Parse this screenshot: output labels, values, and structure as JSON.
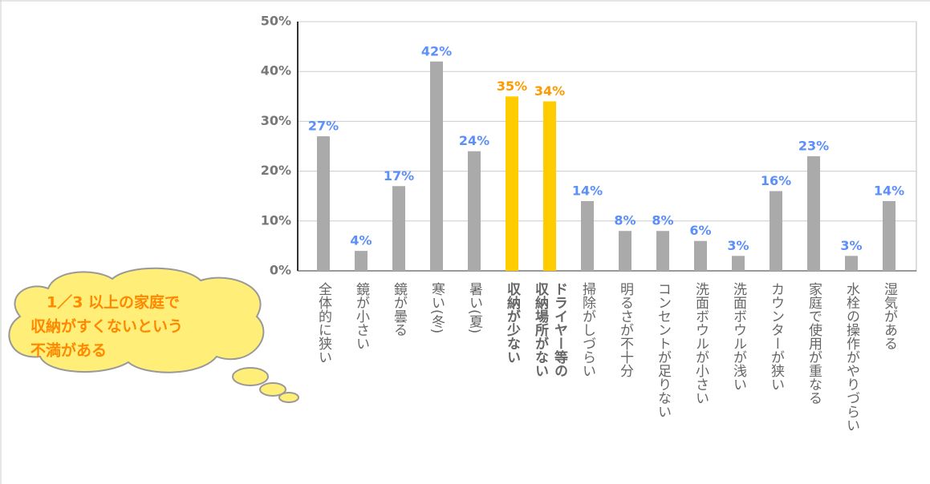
{
  "chart_data": {
    "type": "bar",
    "categories": [
      "全体的に狭い",
      "鏡が小さい",
      "鏡が曇る",
      "寒い(冬)",
      "暑い(夏)",
      "収納が少ない",
      "ドライヤー等の\n収納場所がない",
      "掃除がしづらい",
      "明るさが不十分",
      "コンセントが足りない",
      "洗面ボウルが小さい",
      "洗面ボウルが浅い",
      "カウンターが狭い",
      "家庭で使用が重なる",
      "水栓の操作がやりづらい",
      "湿気がある"
    ],
    "values": [
      27,
      4,
      17,
      42,
      24,
      35,
      34,
      14,
      8,
      8,
      6,
      3,
      16,
      23,
      3,
      14
    ],
    "value_labels": [
      "27%",
      "4%",
      "17%",
      "42%",
      "24%",
      "35%",
      "34%",
      "14%",
      "8%",
      "8%",
      "6%",
      "3%",
      "16%",
      "23%",
      "3%",
      "14%"
    ],
    "colors": [
      "#aaaaaa",
      "#aaaaaa",
      "#aaaaaa",
      "#aaaaaa",
      "#aaaaaa",
      "#ffcc00",
      "#ffcc00",
      "#aaaaaa",
      "#aaaaaa",
      "#aaaaaa",
      "#aaaaaa",
      "#aaaaaa",
      "#aaaaaa",
      "#aaaaaa",
      "#aaaaaa",
      "#aaaaaa"
    ],
    "label_colors": [
      "#5b8ff9",
      "#5b8ff9",
      "#5b8ff9",
      "#5b8ff9",
      "#5b8ff9",
      "#ff9900",
      "#ff9900",
      "#5b8ff9",
      "#5b8ff9",
      "#5b8ff9",
      "#5b8ff9",
      "#5b8ff9",
      "#5b8ff9",
      "#5b8ff9",
      "#5b8ff9",
      "#5b8ff9"
    ],
    "category_colors": [
      "#666666",
      "#666666",
      "#666666",
      "#666666",
      "#666666",
      "#ff9900",
      "#ff9900",
      "#666666",
      "#666666",
      "#666666",
      "#666666",
      "#666666",
      "#666666",
      "#666666",
      "#666666",
      "#666666"
    ],
    "ylim": [
      0,
      50
    ],
    "yticks": [
      {
        "value": 0,
        "label": "0%"
      },
      {
        "value": 10,
        "label": "10%"
      },
      {
        "value": 20,
        "label": "20%"
      },
      {
        "value": 30,
        "label": "30%"
      },
      {
        "value": 40,
        "label": "40%"
      },
      {
        "value": 50,
        "label": "50%"
      }
    ],
    "grid": true,
    "annotation": [
      "1／3 以上の家庭で",
      "収納がすくないという",
      "不満がある"
    ]
  }
}
